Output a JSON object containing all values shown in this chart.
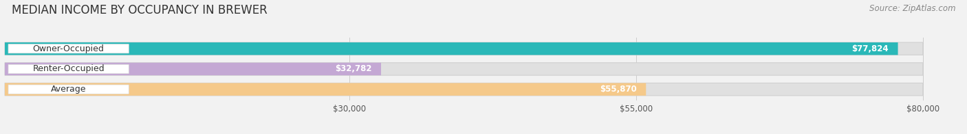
{
  "title": "MEDIAN INCOME BY OCCUPANCY IN BREWER",
  "source": "Source: ZipAtlas.com",
  "categories": [
    "Owner-Occupied",
    "Renter-Occupied",
    "Average"
  ],
  "values": [
    77824,
    32782,
    55870
  ],
  "labels": [
    "$77,824",
    "$32,782",
    "$55,870"
  ],
  "bar_colors": [
    "#2ab8b8",
    "#c4a8d4",
    "#f5c98a"
  ],
  "xlim_min": 0,
  "xlim_max": 83000,
  "data_max": 80000,
  "xticks": [
    30000,
    55000,
    80000
  ],
  "xticklabels": [
    "$30,000",
    "$55,000",
    "$80,000"
  ],
  "title_fontsize": 12,
  "source_fontsize": 8.5,
  "label_fontsize": 8.5,
  "value_fontsize": 8.5,
  "cat_fontsize": 9,
  "bar_height": 0.62,
  "background_color": "#f2f2f2",
  "bar_bg_color": "#e0e0e0",
  "white": "#ffffff",
  "grid_color": "#cccccc",
  "text_dark": "#333333",
  "text_mid": "#555555",
  "text_light": "#888888"
}
